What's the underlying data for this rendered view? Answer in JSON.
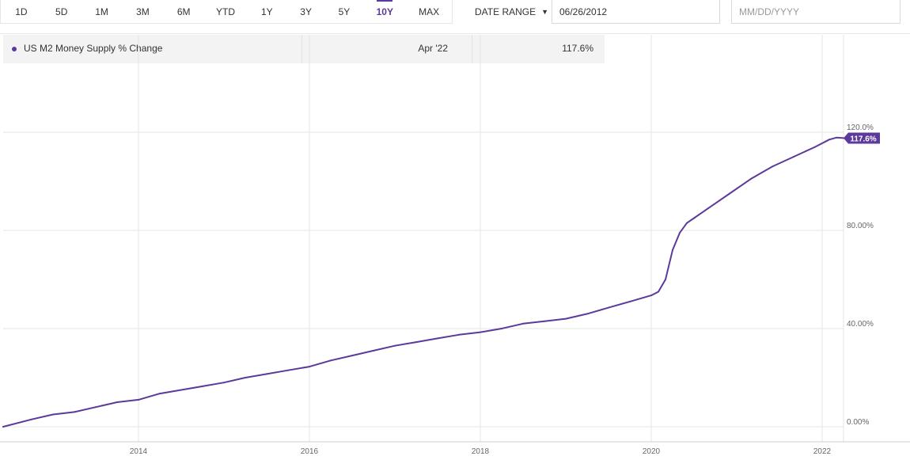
{
  "range_buttons": [
    "1D",
    "5D",
    "1M",
    "3M",
    "6M",
    "YTD",
    "1Y",
    "3Y",
    "5Y",
    "10Y",
    "MAX"
  ],
  "active_range": "10Y",
  "date_range": {
    "label": "DATE RANGE",
    "start_value": "06/26/2012",
    "end_placeholder": "MM/DD/YYYY"
  },
  "legend": {
    "series_name": "US M2 Money Supply % Change",
    "date": "Apr '22",
    "value": "117.6%"
  },
  "colors": {
    "accent": "#5b3a9b",
    "grid": "#e6e6e6",
    "legend_bg": "#f3f3f3"
  },
  "chart_data": {
    "type": "line",
    "title": "",
    "xlabel": "",
    "ylabel": "",
    "x_ticks": [
      "2014",
      "2016",
      "2018",
      "2020",
      "2022"
    ],
    "y_ticks": [
      "0.00%",
      "40.00%",
      "80.00%",
      "120.0%"
    ],
    "ylim": [
      0,
      120
    ],
    "xlim": [
      "2012-06",
      "2022-04"
    ],
    "grid": true,
    "last_value_label": "117.6%",
    "series": [
      {
        "name": "US M2 Money Supply % Change",
        "x": [
          "2012-06",
          "2012-10",
          "2013-01",
          "2013-04",
          "2013-07",
          "2013-10",
          "2014-01",
          "2014-04",
          "2014-07",
          "2014-10",
          "2015-01",
          "2015-04",
          "2015-07",
          "2015-10",
          "2016-01",
          "2016-04",
          "2016-07",
          "2016-10",
          "2017-01",
          "2017-04",
          "2017-07",
          "2017-10",
          "2018-01",
          "2018-04",
          "2018-07",
          "2018-10",
          "2019-01",
          "2019-04",
          "2019-07",
          "2019-10",
          "2020-01",
          "2020-02",
          "2020-03",
          "2020-04",
          "2020-05",
          "2020-06",
          "2020-07",
          "2020-09",
          "2020-12",
          "2021-03",
          "2021-06",
          "2021-09",
          "2021-12",
          "2022-02",
          "2022-03",
          "2022-04"
        ],
        "values": [
          0,
          3,
          5,
          6,
          8,
          10,
          11,
          13.5,
          15,
          16.5,
          18,
          20,
          21.5,
          23,
          24.5,
          27,
          29,
          31,
          33,
          34.5,
          36,
          37.5,
          38.5,
          40,
          42,
          43,
          44,
          46,
          48.5,
          51,
          53.5,
          55,
          60,
          72,
          79,
          83,
          85,
          89,
          95,
          101,
          106,
          110,
          114,
          117,
          117.8,
          117.6
        ]
      }
    ]
  }
}
